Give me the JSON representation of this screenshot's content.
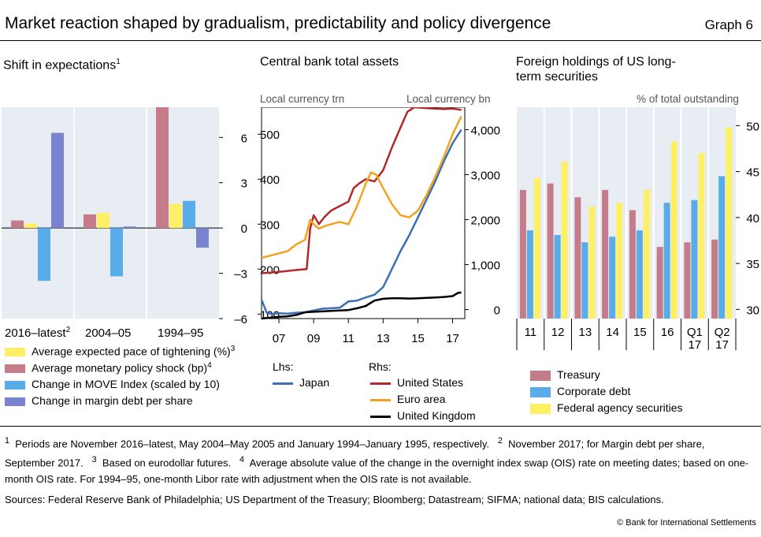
{
  "header": {
    "title": "Market reaction shaped by gradualism, predictability and policy divergence",
    "graph_label": "Graph 6"
  },
  "panels": {
    "left": {
      "title": "Shift in expectations",
      "title_sup": "1",
      "group_labels": [
        {
          "text": "2016–latest",
          "sup": "2"
        },
        {
          "text": "2004–05",
          "sup": ""
        },
        {
          "text": "1994–95",
          "sup": ""
        }
      ]
    },
    "middle": {
      "title": "Central bank total assets",
      "left_axis_caption": "Local currency trn",
      "right_axis_caption": "Local currency bn",
      "lhs_label": "Lhs:",
      "rhs_label": "Rhs:"
    },
    "right": {
      "title": "Foreign holdings of US long-term securities",
      "axis_caption": "% of total outstanding"
    }
  },
  "legends": {
    "left": [
      {
        "label": "Average expected pace of tightening (%)",
        "sup": "3",
        "color": "#fef065"
      },
      {
        "label": "Average monetary policy shock (bp)",
        "sup": "4",
        "color": "#c47b8a"
      },
      {
        "label": "Change in MOVE Index (scaled by 10)",
        "sup": "",
        "color": "#5aace8"
      },
      {
        "label": "Change in margin debt per share",
        "sup": "",
        "color": "#7a83d0"
      }
    ],
    "middle_lhs": [
      {
        "label": "Japan",
        "color": "#3b6fb6"
      }
    ],
    "middle_rhs": [
      {
        "label": "United States",
        "color": "#b3282d"
      },
      {
        "label": "Euro area",
        "color": "#f2a21e"
      },
      {
        "label": "United Kingdom",
        "color": "#000000"
      }
    ],
    "right": [
      {
        "label": "Treasury",
        "color": "#c47b8a"
      },
      {
        "label": "Corporate debt",
        "color": "#5aace8"
      },
      {
        "label": "Federal agency securities",
        "color": "#fef065"
      }
    ]
  },
  "footnotes": {
    "fn1_num": "1",
    "fn1": "Periods are November 2016–latest, May 2004–May 2005 and January 1994–January 1995, respectively.",
    "fn2_num": "2",
    "fn2": "November 2017; for Margin debt per share, September 2017.",
    "fn3_num": "3",
    "fn3": "Based on eurodollar futures.",
    "fn4_num": "4",
    "fn4": "Average absolute value of the change in the overnight index swap (OIS) rate on meeting dates; based on one-month OIS rate. For 1994–95, one-month Libor rate with adjustment when the OIS rate is not available."
  },
  "sources": "Sources: Federal Reserve Bank of Philadelphia; US Department of the Treasury; Bloomberg; Datastream; SIFMA; national data; BIS calculations.",
  "copyright": "© Bank for International Settlements",
  "chart_data": [
    {
      "type": "bar",
      "title": "Shift in expectations",
      "categories": [
        "2016–latest",
        "2004–05",
        "1994–95"
      ],
      "y_ticks": [
        "6",
        "3",
        "0",
        "–3",
        "–6"
      ],
      "ylim": [
        -6,
        8
      ],
      "axis_side": "right",
      "series": [
        {
          "name": "Average monetary policy shock (bp)",
          "color": "#c47b8a",
          "values": [
            0.5,
            0.9,
            8.0
          ]
        },
        {
          "name": "Average expected pace of tightening (%)",
          "color": "#fef065",
          "values": [
            0.3,
            1.0,
            1.6
          ]
        },
        {
          "name": "Change in MOVE Index (scaled by 10)",
          "color": "#5aace8",
          "values": [
            -3.5,
            -3.2,
            1.8
          ]
        },
        {
          "name": "Change in margin debt per share",
          "color": "#7a83d0",
          "values": [
            6.3,
            0.1,
            -1.3
          ]
        }
      ]
    },
    {
      "type": "line",
      "title": "Central bank total assets",
      "xlim": [
        2006.0,
        2017.7
      ],
      "x_ticks": [
        "07",
        "09",
        "11",
        "13",
        "15",
        "17"
      ],
      "x_tick_values": [
        2007,
        2009,
        2011,
        2013,
        2015,
        2017
      ],
      "left_axis": {
        "label": "Local currency trn",
        "range": [
          90,
          560
        ],
        "ticks": [
          "100",
          "200",
          "300",
          "400",
          "500"
        ]
      },
      "right_axis": {
        "label": "Local currency bn",
        "range": [
          -200,
          4500
        ],
        "ticks": [
          "0",
          "1,000",
          "2,000",
          "3,000",
          "4,000"
        ]
      },
      "series": [
        {
          "name": "Japan",
          "axis": "left",
          "color": "#3b6fb6",
          "x": [
            2006.0,
            2006.3,
            2006.6,
            2007.0,
            2007.5,
            2008.0,
            2008.5,
            2009.0,
            2009.5,
            2010.0,
            2010.5,
            2011.0,
            2011.5,
            2012.0,
            2012.5,
            2013.0,
            2013.5,
            2014.0,
            2014.5,
            2015.0,
            2015.5,
            2016.0,
            2016.5,
            2017.0,
            2017.5
          ],
          "y": [
            132,
            103,
            100,
            102,
            101,
            103,
            104,
            108,
            112,
            113,
            114,
            128,
            130,
            137,
            143,
            160,
            200,
            240,
            275,
            315,
            355,
            395,
            440,
            480,
            510
          ]
        },
        {
          "name": "United States",
          "axis": "right",
          "color": "#b3282d",
          "x": [
            2006.0,
            2006.5,
            2007.0,
            2007.5,
            2008.0,
            2008.6,
            2008.8,
            2009.0,
            2009.3,
            2009.6,
            2010.0,
            2010.5,
            2011.0,
            2011.3,
            2011.6,
            2012.0,
            2012.5,
            2013.0,
            2013.5,
            2014.0,
            2014.4,
            2014.8,
            2015.5,
            2016.0,
            2016.5,
            2017.0,
            2017.5
          ],
          "y": [
            810,
            820,
            840,
            860,
            880,
            900,
            1800,
            2100,
            1900,
            2050,
            2200,
            2300,
            2400,
            2700,
            2800,
            2900,
            2850,
            3100,
            3600,
            4050,
            4400,
            4500,
            4480,
            4470,
            4460,
            4470,
            4440
          ]
        },
        {
          "name": "Euro area",
          "axis": "right",
          "color": "#f2a21e",
          "x": [
            2006.0,
            2006.5,
            2007.0,
            2007.5,
            2008.0,
            2008.5,
            2008.8,
            2009.0,
            2009.3,
            2009.6,
            2010.0,
            2010.5,
            2011.0,
            2011.5,
            2012.0,
            2012.3,
            2012.6,
            2013.0,
            2013.5,
            2014.0,
            2014.5,
            2015.0,
            2015.5,
            2016.0,
            2016.5,
            2017.0,
            2017.5
          ],
          "y": [
            1150,
            1200,
            1250,
            1300,
            1450,
            1550,
            2000,
            1900,
            1800,
            1850,
            1900,
            1950,
            1900,
            2300,
            2800,
            3050,
            3000,
            2700,
            2350,
            2100,
            2050,
            2200,
            2550,
            2950,
            3400,
            3900,
            4300
          ]
        },
        {
          "name": "United Kingdom",
          "axis": "right",
          "color": "#000000",
          "x": [
            2006.0,
            2006.5,
            2007.0,
            2007.5,
            2008.0,
            2008.5,
            2009.0,
            2009.5,
            2010.0,
            2010.5,
            2011.0,
            2011.5,
            2012.0,
            2012.5,
            2013.0,
            2013.5,
            2014.0,
            2014.5,
            2015.0,
            2015.5,
            2016.0,
            2016.5,
            2017.0,
            2017.3,
            2017.5
          ],
          "y": [
            -200,
            -180,
            -160,
            -150,
            -120,
            -60,
            -50,
            -40,
            -30,
            -20,
            -10,
            30,
            80,
            200,
            240,
            250,
            250,
            245,
            250,
            260,
            270,
            280,
            300,
            370,
            380
          ]
        }
      ]
    },
    {
      "type": "bar",
      "title": "Foreign holdings of US long-term securities",
      "categories": [
        "11",
        "12",
        "13",
        "14",
        "15",
        "16",
        "Q1 17",
        "Q2 17"
      ],
      "y_label": "% of total outstanding",
      "y_ticks": [
        "50",
        "45",
        "40",
        "35",
        "30"
      ],
      "ylim": [
        29,
        52
      ],
      "axis_side": "right",
      "series": [
        {
          "name": "Treasury",
          "color": "#c47b8a",
          "values": [
            43.0,
            43.7,
            42.2,
            43.0,
            40.8,
            36.8,
            37.3,
            37.6
          ]
        },
        {
          "name": "Corporate debt",
          "color": "#5aace8",
          "values": [
            38.6,
            38.1,
            37.3,
            37.9,
            38.6,
            41.6,
            41.9,
            44.5
          ]
        },
        {
          "name": "Federal agency securities",
          "color": "#fef065",
          "values": [
            44.3,
            46.1,
            41.2,
            41.6,
            43.0,
            48.3,
            47.0,
            49.8
          ]
        }
      ]
    }
  ]
}
